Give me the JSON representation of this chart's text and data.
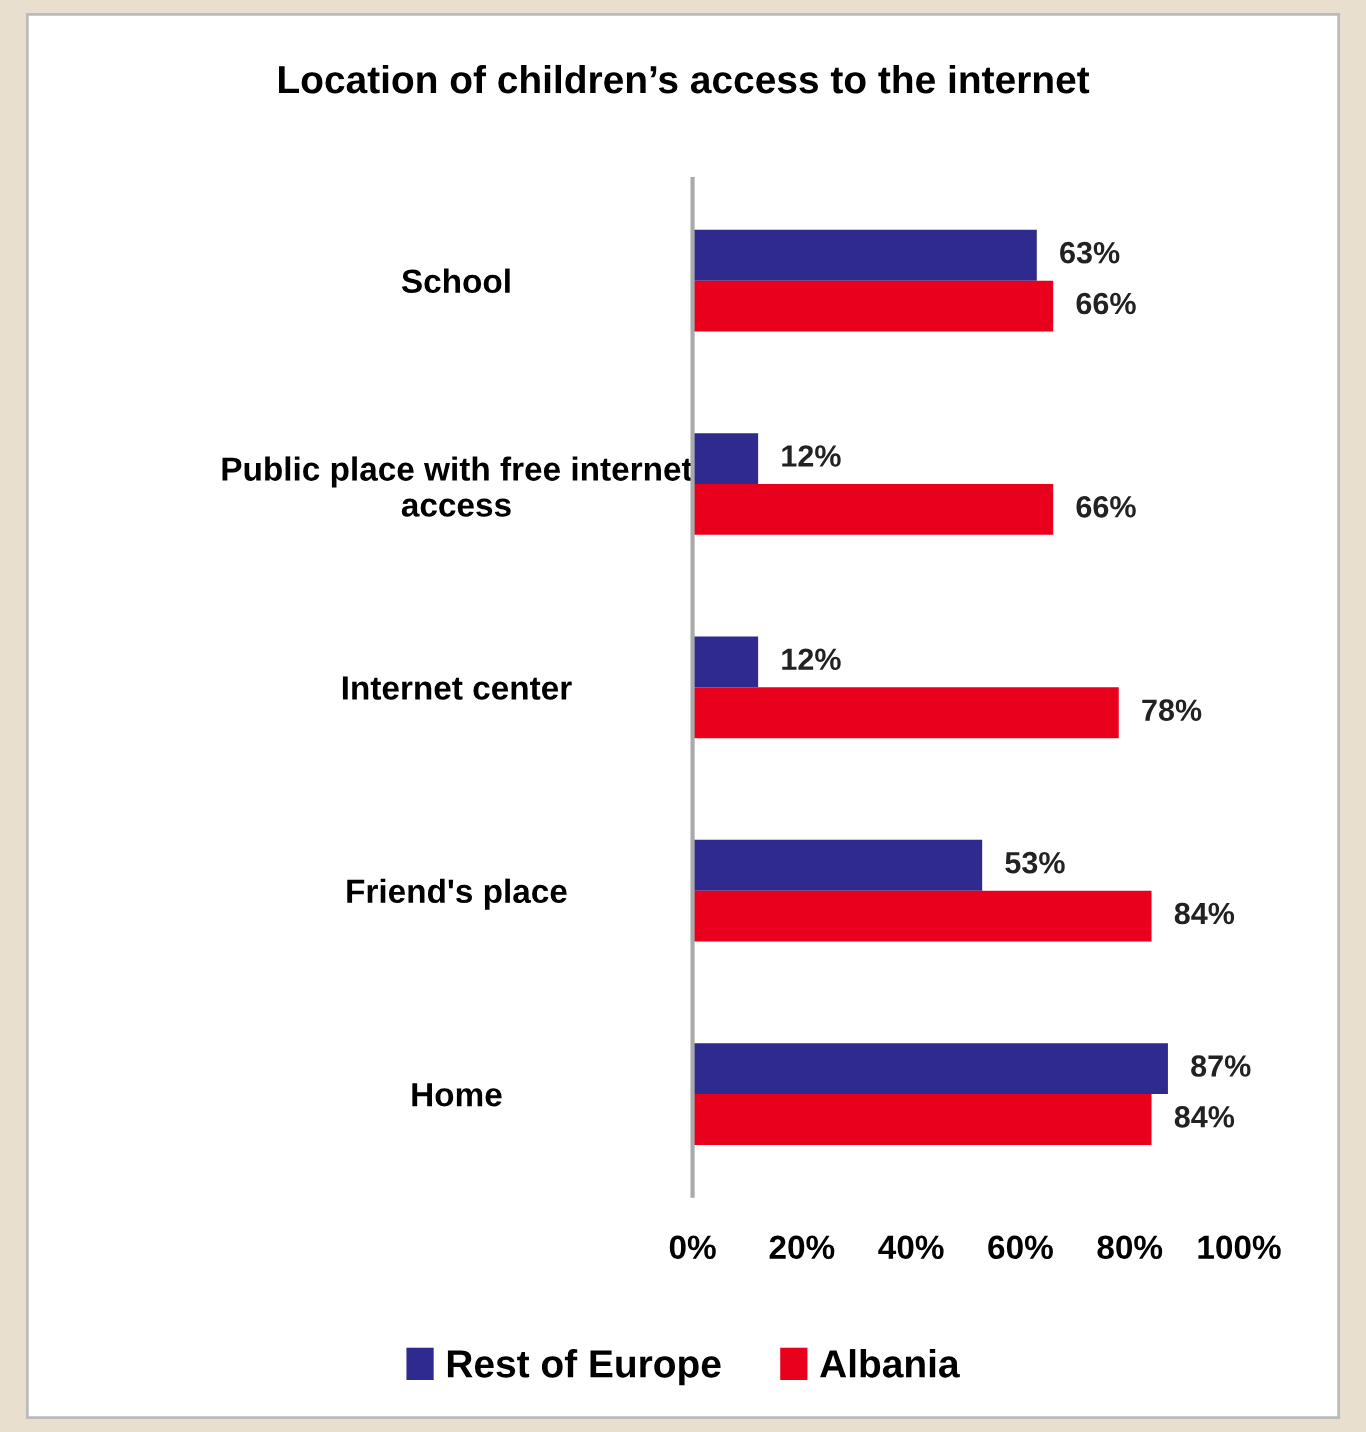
{
  "chart_data": {
    "type": "bar",
    "orientation": "horizontal",
    "title": "Location of children’s access to the internet",
    "categories": [
      "School",
      "Public place with free internet\naccess",
      "Internet center",
      "Friend's place",
      "Home"
    ],
    "series": [
      {
        "name": "Rest of Europe",
        "color": "#2e2a8e",
        "values": [
          63,
          12,
          12,
          53,
          87
        ],
        "value_labels": [
          "63%",
          "12%",
          "12%",
          "53%",
          "87%"
        ]
      },
      {
        "name": "Albania",
        "color": "#e8001c",
        "values": [
          66,
          66,
          78,
          84,
          84
        ],
        "value_labels": [
          "66%",
          "66%",
          "78%",
          "84%",
          "84%"
        ]
      }
    ],
    "xlim": [
      0,
      100
    ],
    "xticks": [
      {
        "value": 0,
        "label": "0%"
      },
      {
        "value": 20,
        "label": "20%"
      },
      {
        "value": 40,
        "label": "40%"
      },
      {
        "value": 60,
        "label": "60%"
      },
      {
        "value": 80,
        "label": "80%"
      },
      {
        "value": 100,
        "label": "100%"
      }
    ],
    "grid": false,
    "legend": "bottom"
  }
}
